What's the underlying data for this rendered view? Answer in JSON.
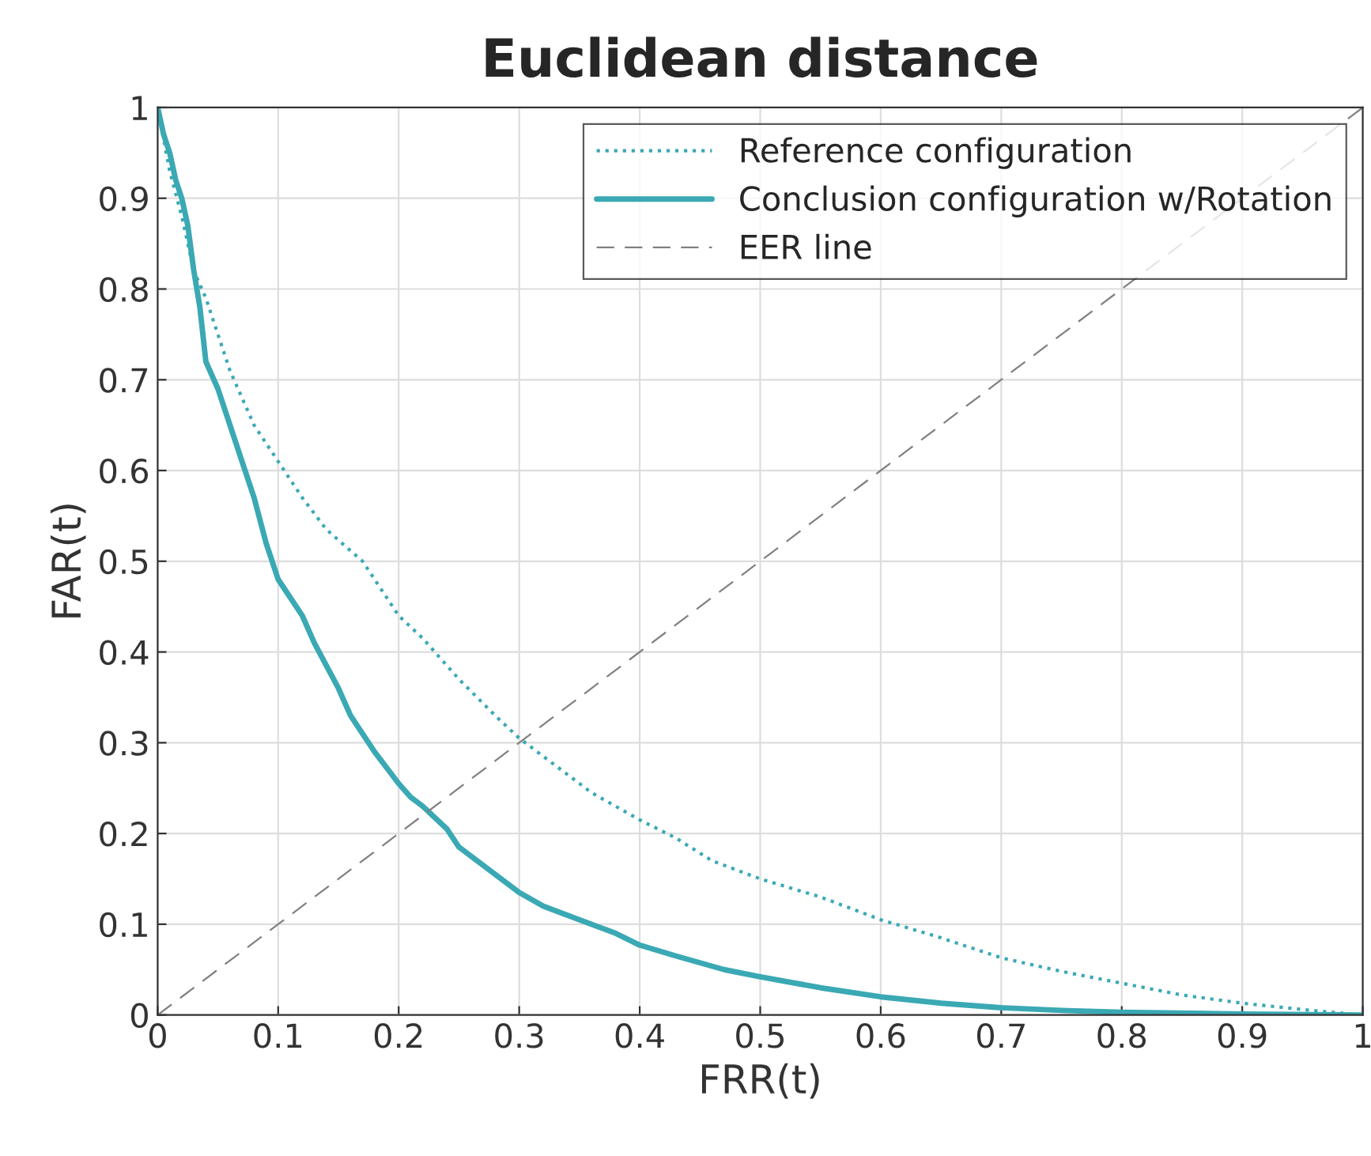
{
  "chart_data": {
    "type": "line",
    "title": "Euclidean distance",
    "xlabel": "FRR(t)",
    "ylabel": "FAR(t)",
    "xlim": [
      0,
      1
    ],
    "ylim": [
      0,
      1
    ],
    "xticks": [
      0,
      0.1,
      0.2,
      0.3,
      0.4,
      0.5,
      0.6,
      0.7,
      0.8,
      0.9,
      1
    ],
    "yticks": [
      0,
      0.1,
      0.2,
      0.3,
      0.4,
      0.5,
      0.6,
      0.7,
      0.8,
      0.9,
      1
    ],
    "grid": true,
    "legend": "top right",
    "series": [
      {
        "name": "Reference configuration",
        "color": "#3aa9b4",
        "line_style": "dotted",
        "x": [
          0,
          0.01,
          0.02,
          0.03,
          0.04,
          0.05,
          0.06,
          0.07,
          0.08,
          0.1,
          0.12,
          0.14,
          0.17,
          0.2,
          0.22,
          0.25,
          0.28,
          0.3,
          0.33,
          0.36,
          0.4,
          0.43,
          0.46,
          0.5,
          0.55,
          0.6,
          0.65,
          0.7,
          0.75,
          0.8,
          0.85,
          0.9,
          0.95,
          1.0
        ],
        "values": [
          1,
          0.93,
          0.88,
          0.82,
          0.79,
          0.75,
          0.71,
          0.68,
          0.65,
          0.61,
          0.57,
          0.535,
          0.5,
          0.44,
          0.415,
          0.37,
          0.33,
          0.305,
          0.275,
          0.245,
          0.215,
          0.195,
          0.17,
          0.15,
          0.13,
          0.105,
          0.085,
          0.063,
          0.048,
          0.035,
          0.022,
          0.013,
          0.006,
          0
        ]
      },
      {
        "name": "Conclusion configuration w/Rotation",
        "color": "#3aa9b4",
        "line_style": "solid",
        "x": [
          0,
          0.005,
          0.01,
          0.015,
          0.02,
          0.025,
          0.03,
          0.035,
          0.04,
          0.05,
          0.06,
          0.07,
          0.08,
          0.09,
          0.1,
          0.12,
          0.13,
          0.14,
          0.15,
          0.16,
          0.17,
          0.18,
          0.2,
          0.21,
          0.22,
          0.24,
          0.25,
          0.27,
          0.29,
          0.3,
          0.32,
          0.35,
          0.38,
          0.4,
          0.43,
          0.47,
          0.5,
          0.55,
          0.6,
          0.65,
          0.7,
          0.75,
          0.8,
          0.9,
          1.0
        ],
        "values": [
          1.0,
          0.97,
          0.95,
          0.92,
          0.9,
          0.87,
          0.82,
          0.78,
          0.72,
          0.69,
          0.65,
          0.61,
          0.57,
          0.52,
          0.48,
          0.44,
          0.41,
          0.385,
          0.36,
          0.33,
          0.31,
          0.29,
          0.255,
          0.24,
          0.23,
          0.205,
          0.185,
          0.165,
          0.145,
          0.135,
          0.12,
          0.105,
          0.09,
          0.077,
          0.065,
          0.05,
          0.042,
          0.03,
          0.02,
          0.013,
          0.008,
          0.005,
          0.003,
          0.001,
          0
        ]
      },
      {
        "name": "EER line",
        "color": "#808080",
        "line_style": "dashed",
        "x": [
          0,
          1
        ],
        "values": [
          0,
          1
        ]
      }
    ]
  }
}
